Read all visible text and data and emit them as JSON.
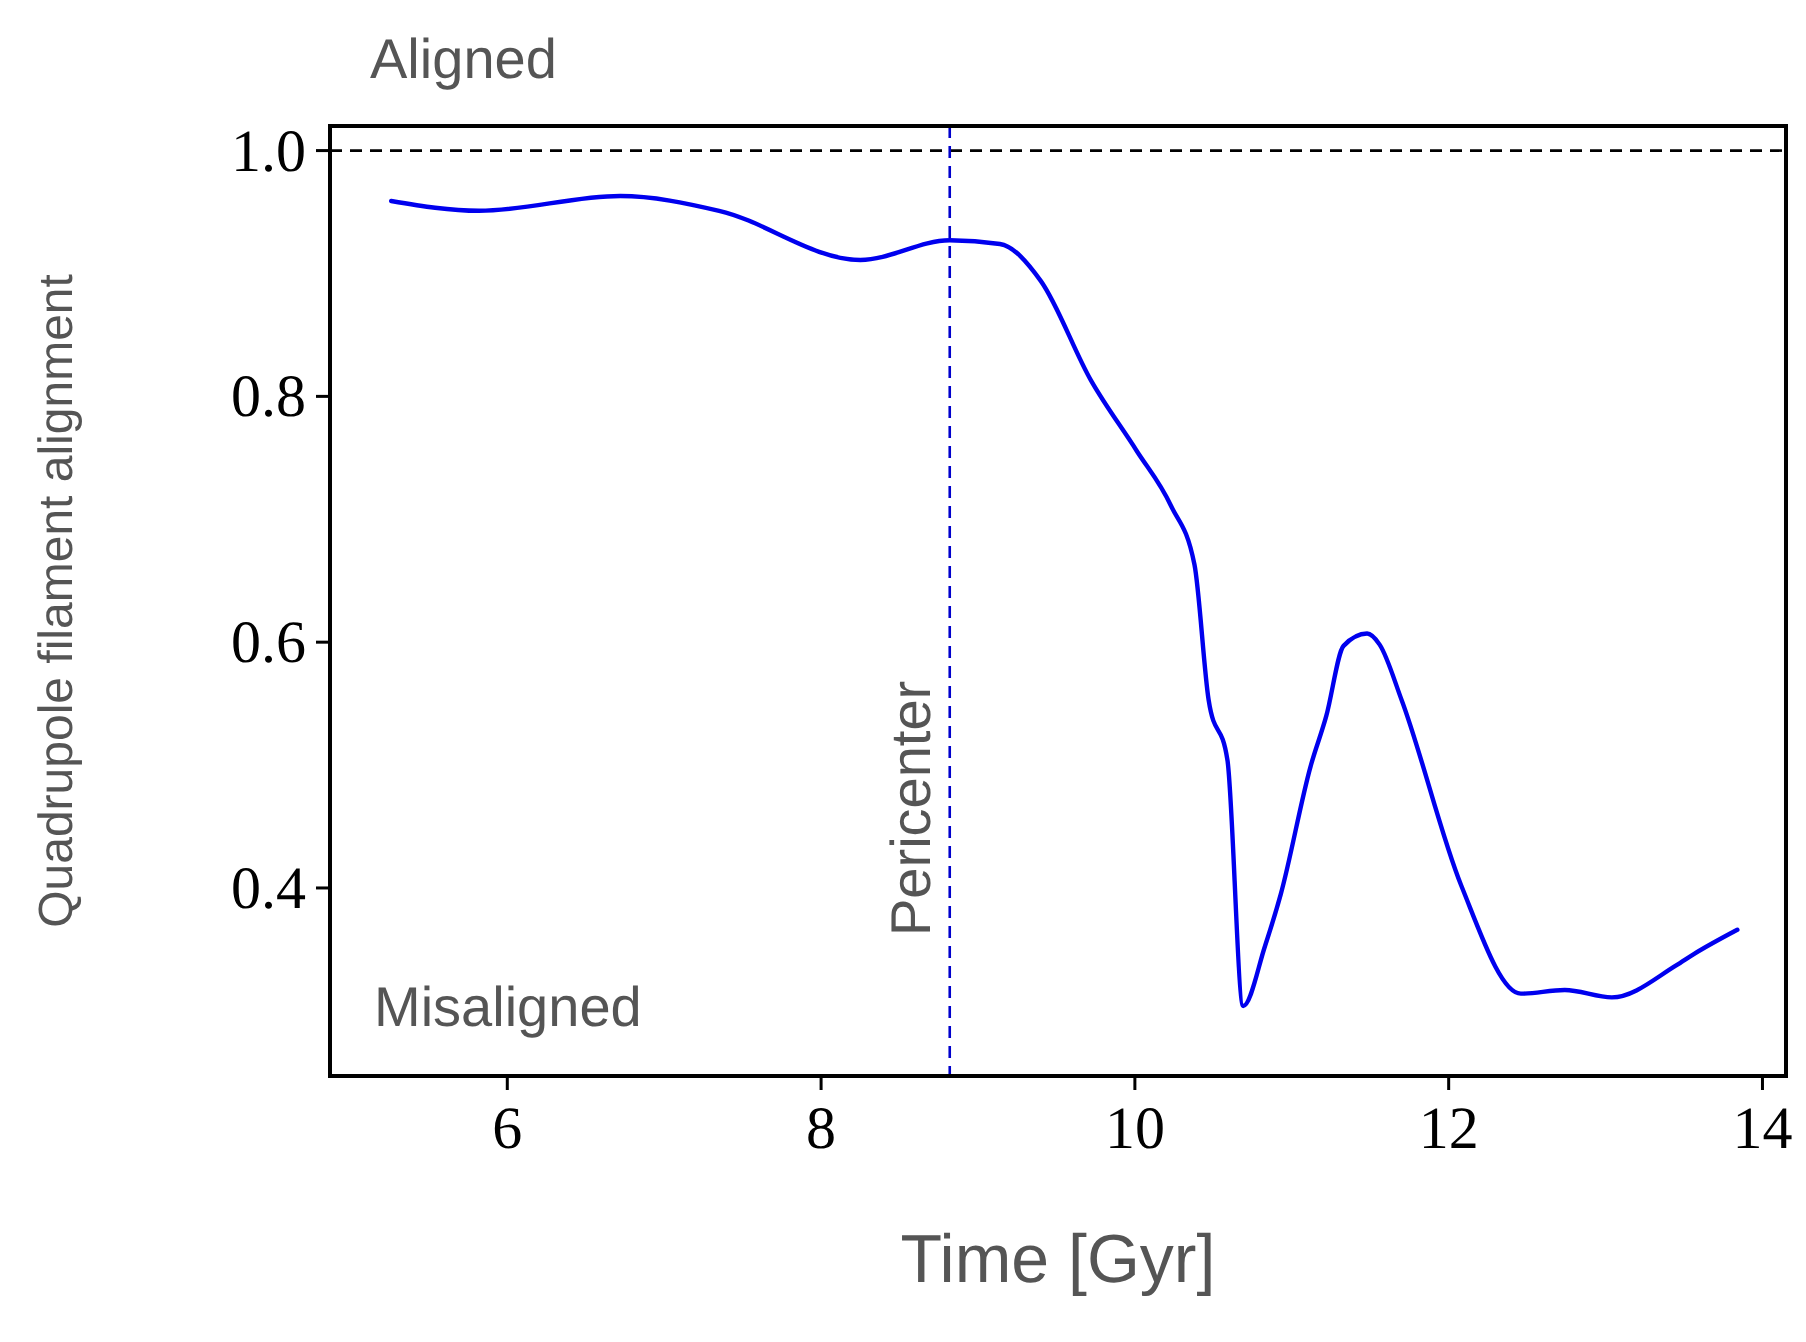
{
  "chart_data": {
    "type": "line",
    "xlabel": "Time [Gyr]",
    "ylabel": "Quadrupole filament alignment",
    "xlim": [
      4.87,
      14.15
    ],
    "ylim": [
      0.247,
      1.02
    ],
    "xticks": [
      6,
      8,
      10,
      12,
      14
    ],
    "yticks": [
      0.4,
      0.6,
      0.8,
      {
        "value": 1,
        "label": "1.0"
      }
    ],
    "x": [
      5.26,
      5.82,
      6.72,
      7.35,
      8.25,
      8.82,
      9.14,
      9.4,
      9.72,
      10.01,
      10.23,
      10.38,
      10.47,
      10.59,
      10.69,
      10.83,
      10.93,
      11.12,
      11.22,
      11.33,
      11.48,
      11.56,
      11.7,
      12.08,
      12.46,
      12.74,
      13.04,
      13.45,
      13.56,
      13.84
    ],
    "series": [
      {
        "color": "#0000ee",
        "values": [
          0.959,
          0.951,
          0.963,
          0.951,
          0.911,
          0.927,
          0.924,
          0.894,
          0.813,
          0.756,
          0.711,
          0.663,
          0.553,
          0.504,
          0.304,
          0.353,
          0.395,
          0.499,
          0.54,
          0.597,
          0.607,
          0.598,
          0.553,
          0.402,
          0.314,
          0.317,
          0.311,
          0.337,
          0.346,
          0.366
        ]
      }
    ],
    "ref_lines": [
      {
        "axis": "y",
        "value": 1.0,
        "color": "#000000",
        "line_style": "dashed"
      },
      {
        "axis": "x",
        "value": 8.82,
        "label": "Pericenter",
        "color": "#0000cc",
        "line_style": "dashed"
      }
    ],
    "annotations": [
      "Aligned",
      "Misaligned"
    ],
    "grid": false,
    "line_style": "solid",
    "marker": "none"
  }
}
